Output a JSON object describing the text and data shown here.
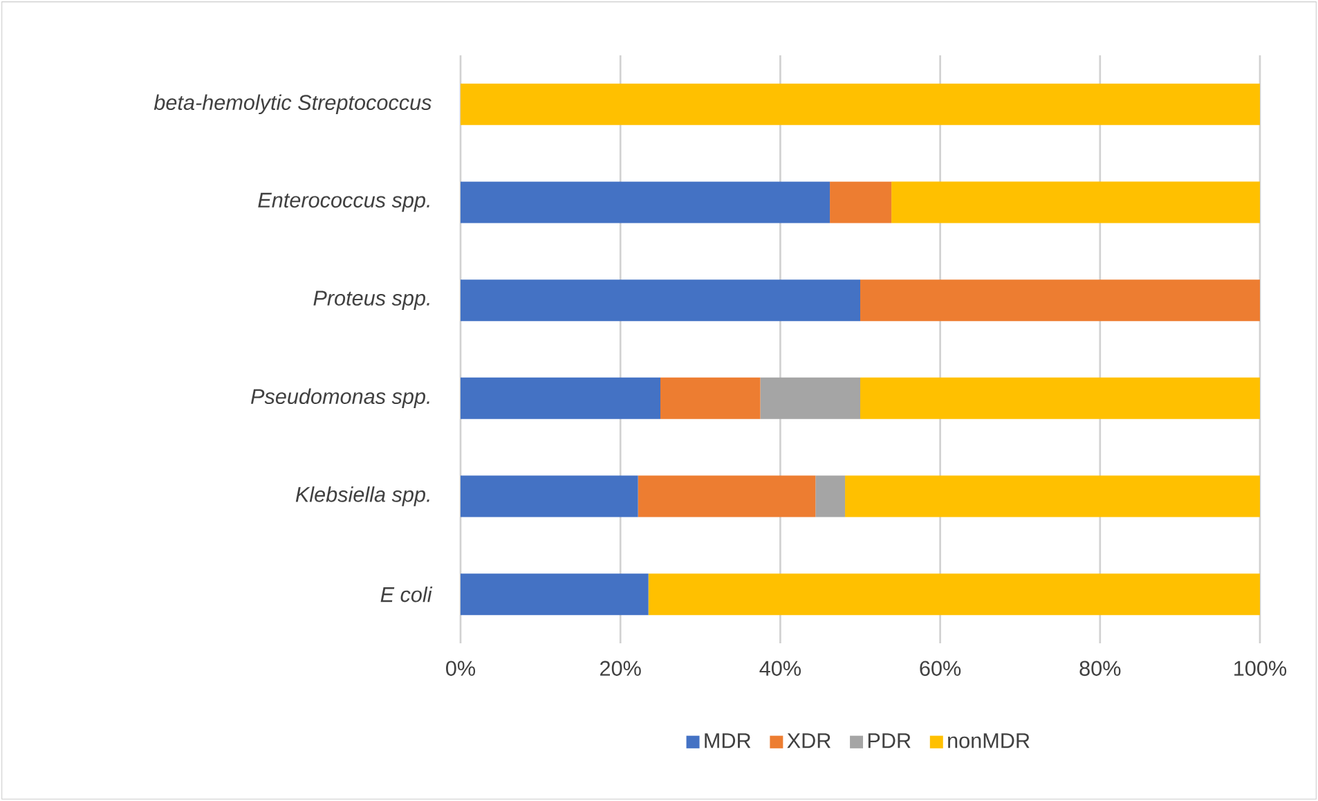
{
  "chart_data": {
    "type": "bar",
    "orientation": "horizontal",
    "stacked": true,
    "categories": [
      "beta-hemolytic Streptococcus",
      "Enterococcus spp.",
      "Proteus spp.",
      "Pseudomonas spp.",
      "Klebsiella spp.",
      "E coli"
    ],
    "series": [
      {
        "name": "MDR",
        "color": "#4472c4",
        "values": [
          0,
          46.2,
          50,
          25,
          22.2,
          23.5
        ]
      },
      {
        "name": "XDR",
        "color": "#ed7d31",
        "values": [
          0,
          7.7,
          50,
          12.5,
          22.2,
          0
        ]
      },
      {
        "name": "PDR",
        "color": "#a5a5a5",
        "values": [
          0,
          0,
          0,
          12.5,
          3.7,
          0
        ]
      },
      {
        "name": "nonMDR",
        "color": "#ffc000",
        "values": [
          100,
          46.2,
          0,
          50,
          51.9,
          76.5
        ]
      }
    ],
    "xlim": [
      0,
      100
    ],
    "xticks": [
      {
        "value": 0,
        "label": "0%"
      },
      {
        "value": 20,
        "label": "20%"
      },
      {
        "value": 40,
        "label": "40%"
      },
      {
        "value": 60,
        "label": "60%"
      },
      {
        "value": 80,
        "label": "80%"
      },
      {
        "value": 100,
        "label": "100%"
      }
    ],
    "grid": "x",
    "legend": "bottom"
  }
}
